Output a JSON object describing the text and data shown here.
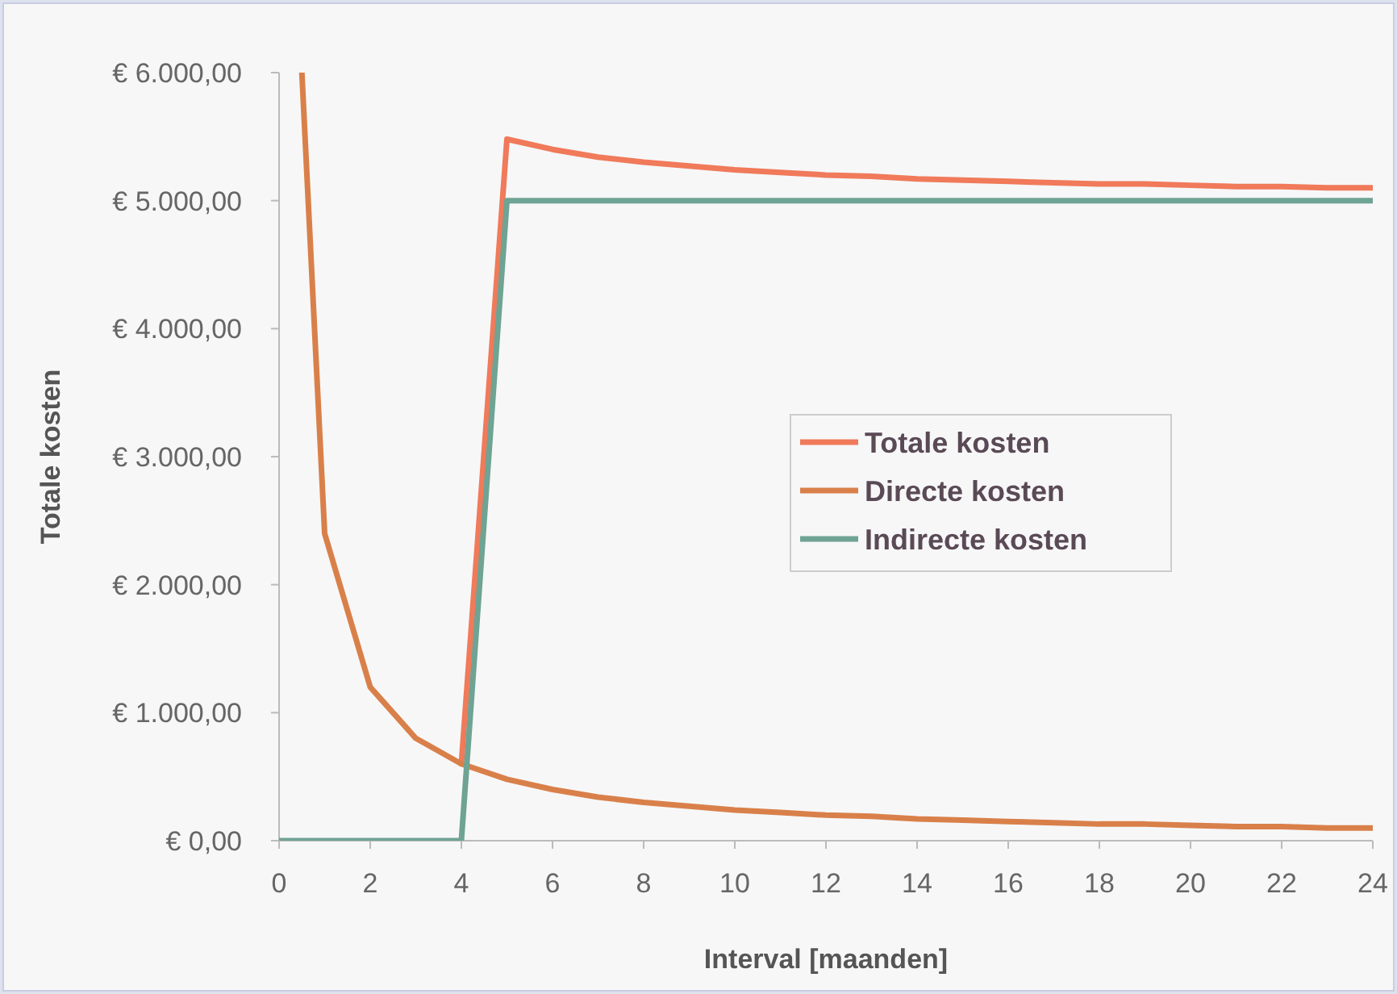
{
  "chart_data": {
    "type": "line",
    "xlabel": "Interval [maanden]",
    "ylabel": "Totale kosten",
    "xlim": [
      0,
      24
    ],
    "xticks": [
      0,
      2,
      4,
      6,
      8,
      10,
      12,
      14,
      16,
      18,
      20,
      22,
      24
    ],
    "ylim": [
      0,
      6000
    ],
    "yticks": [
      {
        "value": 0,
        "label": "€ 0,00"
      },
      {
        "value": 1000,
        "label": "€ 1.000,00"
      },
      {
        "value": 2000,
        "label": "€ 2.000,00"
      },
      {
        "value": 3000,
        "label": "€ 3.000,00"
      },
      {
        "value": 4000,
        "label": "€ 4.000,00"
      },
      {
        "value": 5000,
        "label": "€ 5.000,00"
      },
      {
        "value": 6000,
        "label": "€ 6.000,00"
      }
    ],
    "grid": false,
    "legend": "right",
    "line_style": "solid",
    "series": [
      {
        "name": "Totale kosten",
        "color": "#f07a5a",
        "x": [
          4,
          5,
          6,
          7,
          8,
          9,
          10,
          11,
          12,
          13,
          14,
          15,
          16,
          17,
          18,
          19,
          20,
          21,
          22,
          23,
          24
        ],
        "values": [
          600,
          5480,
          5400,
          5340,
          5300,
          5270,
          5240,
          5220,
          5200,
          5190,
          5170,
          5160,
          5150,
          5140,
          5130,
          5130,
          5120,
          5110,
          5110,
          5100,
          5100
        ]
      },
      {
        "name": "Directe kosten",
        "color": "#d9804a",
        "x": [
          0.5,
          1,
          2,
          3,
          4,
          5,
          6,
          7,
          8,
          9,
          10,
          11,
          12,
          13,
          14,
          15,
          16,
          17,
          18,
          19,
          20,
          21,
          22,
          23,
          24
        ],
        "values": [
          6000,
          2400,
          1200,
          800,
          600,
          480,
          400,
          340,
          300,
          270,
          240,
          220,
          200,
          190,
          170,
          160,
          150,
          140,
          130,
          130,
          120,
          110,
          110,
          100,
          100
        ]
      },
      {
        "name": "Indirecte kosten",
        "color": "#6fa393",
        "x": [
          0,
          4,
          5,
          24
        ],
        "values": [
          0,
          0,
          5000,
          5000
        ]
      }
    ]
  }
}
